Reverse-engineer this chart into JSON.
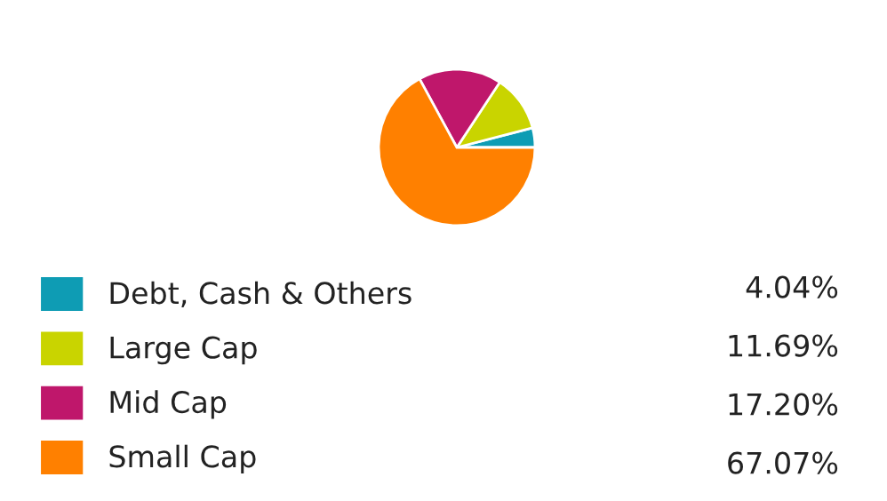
{
  "chart_data": {
    "type": "pie",
    "categories": [
      "Debt, Cash & Others",
      "Large Cap",
      "Mid Cap",
      "Small Cap"
    ],
    "values": [
      4.04,
      11.69,
      17.2,
      67.07
    ],
    "colors": [
      "#0e9cb4",
      "#c9d400",
      "#bf176b",
      "#ff8000"
    ],
    "value_labels": [
      "4.04%",
      "11.69%",
      "17.20%",
      "67.07%"
    ],
    "legend": "bottom"
  }
}
